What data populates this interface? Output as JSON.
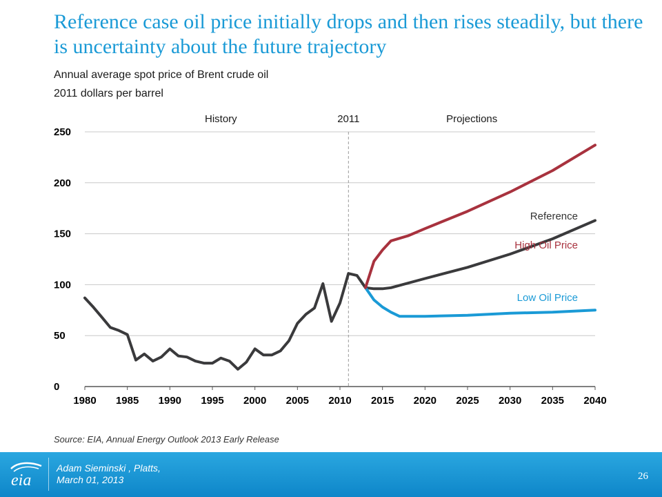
{
  "slide": {
    "title": "Reference case oil price initially drops and then rises steadily, but there is uncertainty about the future trajectory",
    "subtitle_line1": "Annual average spot price of Brent crude oil",
    "subtitle_line2": "2011 dollars per barrel",
    "source": "Source:  EIA, Annual Energy Outlook 2013 Early Release",
    "presenter_line1": "Adam Sieminski , Platts,",
    "presenter_line2": "March 01, 2013",
    "page_number": "26",
    "logo_text": "eia",
    "logo_icon": "eia-logo-icon"
  },
  "chart_data": {
    "type": "line",
    "title": "",
    "xlabel": "",
    "ylabel": "",
    "xlim": [
      1980,
      2040
    ],
    "ylim": [
      0,
      250
    ],
    "x_ticks": [
      "1980",
      "1985",
      "1990",
      "1995",
      "2000",
      "2005",
      "2010",
      "2015",
      "2020",
      "2025",
      "2030",
      "2035",
      "2040"
    ],
    "y_ticks": [
      "0",
      "50",
      "100",
      "150",
      "200",
      "250"
    ],
    "grid": "horizontal",
    "annotations": {
      "history": "History",
      "divider_year": "2011",
      "projections": "Projections"
    },
    "divider_x": 2011,
    "colors": {
      "history": "#3a3a3c",
      "high": "#a8323e",
      "reference": "#3a3a3c",
      "low": "#1a9ad6",
      "grid": "#c8c8c8"
    },
    "series": [
      {
        "id": "history",
        "x": [
          1980,
          1981,
          1982,
          1983,
          1984,
          1985,
          1986,
          1987,
          1988,
          1989,
          1990,
          1991,
          1992,
          1993,
          1994,
          1995,
          1996,
          1997,
          1998,
          1999,
          2000,
          2001,
          2002,
          2003,
          2004,
          2005,
          2006,
          2007,
          2008,
          2009,
          2010,
          2011,
          2012,
          2013
        ],
        "values": [
          87,
          78,
          68,
          58,
          55,
          51,
          26,
          32,
          25,
          29,
          37,
          30,
          29,
          25,
          23,
          23,
          28,
          25,
          17,
          24,
          37,
          31,
          31,
          35,
          45,
          62,
          71,
          77,
          101,
          64,
          82,
          111,
          109,
          97
        ]
      },
      {
        "name": "High Oil Price",
        "id": "high",
        "x": [
          2013,
          2014,
          2015,
          2016,
          2018,
          2020,
          2025,
          2030,
          2035,
          2040
        ],
        "values": [
          97,
          123,
          134,
          143,
          148,
          155,
          172,
          191,
          212,
          237
        ]
      },
      {
        "name": "Reference",
        "id": "reference",
        "x": [
          2013,
          2014,
          2015,
          2016,
          2020,
          2025,
          2030,
          2035,
          2040
        ],
        "values": [
          97,
          96,
          96,
          97,
          106,
          117,
          130,
          145,
          163
        ]
      },
      {
        "name": "Low Oil Price",
        "id": "low",
        "x": [
          2013,
          2014,
          2015,
          2016,
          2017,
          2020,
          2025,
          2030,
          2035,
          2040
        ],
        "values": [
          97,
          85,
          78,
          73,
          69,
          69,
          70,
          72,
          73,
          75
        ]
      }
    ]
  }
}
